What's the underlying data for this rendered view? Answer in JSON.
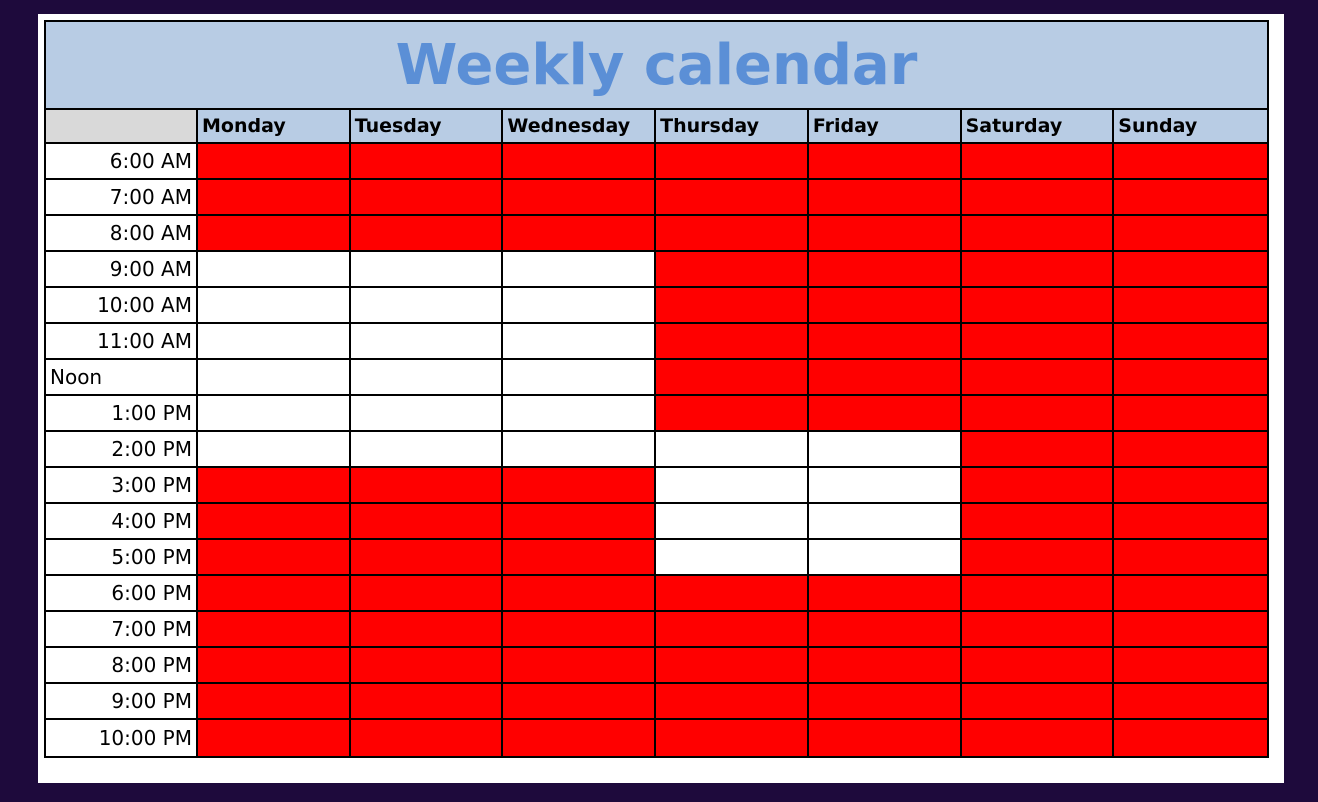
{
  "title": "Weekly calendar",
  "colors": {
    "busy": "#ff0000",
    "free": "#ffffff",
    "header_bg": "#b8cce4",
    "title_text": "#5b8fd6"
  },
  "days": [
    "Monday",
    "Tuesday",
    "Wednesday",
    "Thursday",
    "Friday",
    "Saturday",
    "Sunday"
  ],
  "times": [
    "6:00 AM",
    "7:00 AM",
    "8:00 AM",
    "9:00 AM",
    "10:00 AM",
    "11:00 AM",
    "Noon",
    "1:00 PM",
    "2:00 PM",
    "3:00 PM",
    "4:00 PM",
    "5:00 PM",
    "6:00 PM",
    "7:00 PM",
    "8:00 PM",
    "9:00 PM",
    "10:00 PM"
  ],
  "schedule": [
    [
      1,
      1,
      1,
      1,
      1,
      1,
      1
    ],
    [
      1,
      1,
      1,
      1,
      1,
      1,
      1
    ],
    [
      1,
      1,
      1,
      1,
      1,
      1,
      1
    ],
    [
      0,
      0,
      0,
      1,
      1,
      1,
      1
    ],
    [
      0,
      0,
      0,
      1,
      1,
      1,
      1
    ],
    [
      0,
      0,
      0,
      1,
      1,
      1,
      1
    ],
    [
      0,
      0,
      0,
      1,
      1,
      1,
      1
    ],
    [
      0,
      0,
      0,
      1,
      1,
      1,
      1
    ],
    [
      0,
      0,
      0,
      0,
      0,
      1,
      1
    ],
    [
      1,
      1,
      1,
      0,
      0,
      1,
      1
    ],
    [
      1,
      1,
      1,
      0,
      0,
      1,
      1
    ],
    [
      1,
      1,
      1,
      0,
      0,
      1,
      1
    ],
    [
      1,
      1,
      1,
      1,
      1,
      1,
      1
    ],
    [
      1,
      1,
      1,
      1,
      1,
      1,
      1
    ],
    [
      1,
      1,
      1,
      1,
      1,
      1,
      1
    ],
    [
      1,
      1,
      1,
      1,
      1,
      1,
      1
    ],
    [
      1,
      1,
      1,
      1,
      1,
      1,
      1
    ]
  ]
}
